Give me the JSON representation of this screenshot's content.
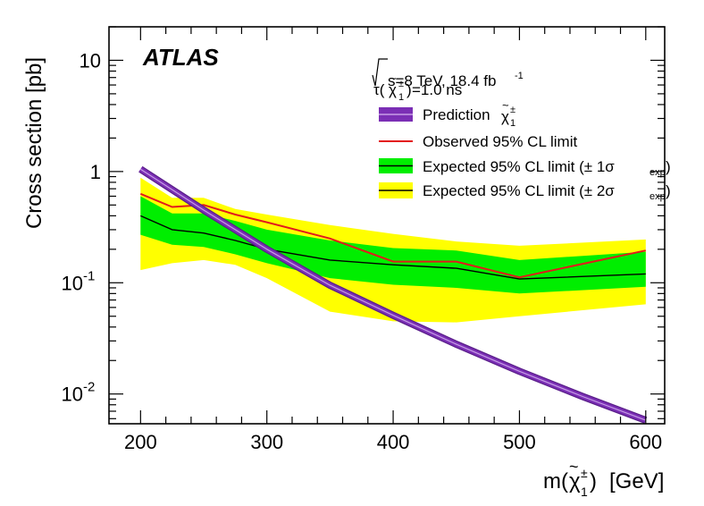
{
  "chart_data": {
    "type": "line",
    "y_scale": "log",
    "xlabel": "[GeV]",
    "ylabel": "Cross section [pb]",
    "xlim": [
      175,
      615
    ],
    "ylim": [
      0.0054,
      20
    ],
    "x_ticks": [
      200,
      300,
      400,
      500,
      600
    ],
    "y_ticks": [
      {
        "value": 10,
        "base": "10",
        "exp": ""
      },
      {
        "value": 1,
        "base": "1",
        "exp": ""
      },
      {
        "value": 0.1,
        "base": "10",
        "exp": "-1"
      },
      {
        "value": 0.01,
        "base": "10",
        "exp": "-2"
      }
    ],
    "experiment": "ATLAS",
    "energy_text": "s=8 TeV, 18.4 fb",
    "energy_sup": "-1",
    "lifetime_text": "=1.0 ns",
    "legend": {
      "prediction": "Prediction",
      "observed": "Observed 95% CL limit",
      "expected_1sigma": "Expected 95% CL limit (± 1σ",
      "expected_2sigma": "Expected 95% CL limit (± 2σ",
      "sub_exp": "exp",
      "close_paren": ")"
    },
    "colors": {
      "prediction": "#7b2fb5",
      "prediction_dark": "#5a1e8a",
      "observed": "#e31a1c",
      "band_1sigma": "#00ee00",
      "band_2sigma": "#ffff00",
      "expected": "#000000"
    },
    "series": {
      "prediction": {
        "name": "Prediction chargino",
        "x": [
          200,
          250,
          300,
          350,
          400,
          450,
          500,
          550,
          600
        ],
        "y": [
          1.05,
          0.45,
          0.2,
          0.095,
          0.051,
          0.028,
          0.016,
          0.0095,
          0.0058
        ]
      },
      "observed": {
        "name": "Observed 95% CL limit",
        "x": [
          200,
          225,
          250,
          275,
          300,
          350,
          400,
          450,
          500,
          600
        ],
        "y": [
          0.63,
          0.48,
          0.5,
          0.41,
          0.35,
          0.25,
          0.155,
          0.155,
          0.112,
          0.195
        ]
      },
      "expected": {
        "name": "Expected 95% CL limit",
        "x": [
          200,
          225,
          250,
          275,
          300,
          350,
          400,
          450,
          500,
          600
        ],
        "y": [
          0.4,
          0.3,
          0.28,
          0.24,
          0.2,
          0.16,
          0.145,
          0.135,
          0.108,
          0.12
        ],
        "band1_lo": [
          0.27,
          0.22,
          0.21,
          0.18,
          0.15,
          0.11,
          0.096,
          0.09,
          0.08,
          0.092
        ],
        "band1_hi": [
          0.6,
          0.42,
          0.42,
          0.36,
          0.3,
          0.24,
          0.205,
          0.195,
          0.16,
          0.19
        ],
        "band2_lo": [
          0.13,
          0.15,
          0.16,
          0.145,
          0.11,
          0.055,
          0.045,
          0.044,
          0.05,
          0.064
        ],
        "band2_hi": [
          0.88,
          0.58,
          0.58,
          0.46,
          0.41,
          0.33,
          0.275,
          0.235,
          0.215,
          0.245
        ]
      }
    }
  }
}
